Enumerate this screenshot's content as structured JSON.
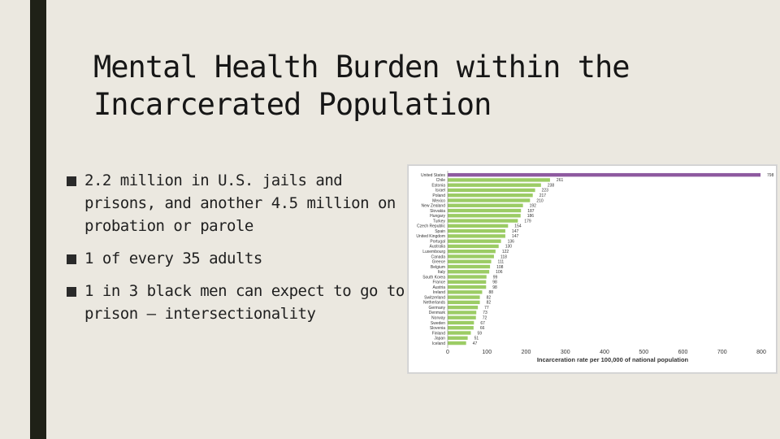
{
  "slide": {
    "title_line1": "Mental Health Burden within the",
    "title_line2": "Incarcerated Population",
    "bullets": [
      "2.2 million in U.S. jails and prisons, and another 4.5 million on probation or parole",
      "1 of every 35 adults",
      "1 in 3 black men can expect to go to prison – intersectionality"
    ]
  },
  "colors": {
    "highlight_bar": "#8e5aa0",
    "bar": "#9ccc65",
    "side_bar": "#1f2117"
  },
  "chart_data": {
    "type": "bar",
    "orientation": "horizontal",
    "title": "",
    "xlabel": "Incarceration rate per 100,000 of national population",
    "ylabel": "",
    "xlim": [
      0,
      800
    ],
    "xticks": [
      "0",
      "100",
      "200",
      "300",
      "400",
      "500",
      "600",
      "700",
      "800"
    ],
    "grid": false,
    "categories": [
      "United States",
      "Chile",
      "Estonia",
      "Israel",
      "Poland",
      "Mexico",
      "New Zealand",
      "Slovakia",
      "Hungary",
      "Turkey",
      "Czech Republic",
      "Spain",
      "United Kingdom",
      "Portugal",
      "Australia",
      "Luxembourg",
      "Canada",
      "Greece",
      "Belgium",
      "Italy",
      "South Korea",
      "France",
      "Austria",
      "Ireland",
      "Switzerland",
      "Netherlands",
      "Germany",
      "Denmark",
      "Norway",
      "Sweden",
      "Slovenia",
      "Finland",
      "Japan",
      "Iceland"
    ],
    "values": [
      798,
      261,
      238,
      223,
      217,
      210,
      192,
      187,
      186,
      179,
      154,
      147,
      147,
      136,
      130,
      122,
      118,
      111,
      108,
      106,
      99,
      98,
      98,
      88,
      82,
      82,
      77,
      73,
      72,
      67,
      66,
      59,
      51,
      47
    ],
    "value_labels": [
      "798",
      "261",
      "238",
      "223",
      "217",
      "210",
      "192",
      "187",
      "186",
      "179",
      "154",
      "147",
      "147",
      "136",
      "130",
      "122",
      "118",
      "111",
      "108",
      "106",
      "99",
      "98",
      "98",
      "88",
      "82",
      "82",
      "77",
      "73",
      "72",
      "67",
      "66",
      "59",
      "51",
      "47"
    ],
    "highlight_index": 0
  }
}
